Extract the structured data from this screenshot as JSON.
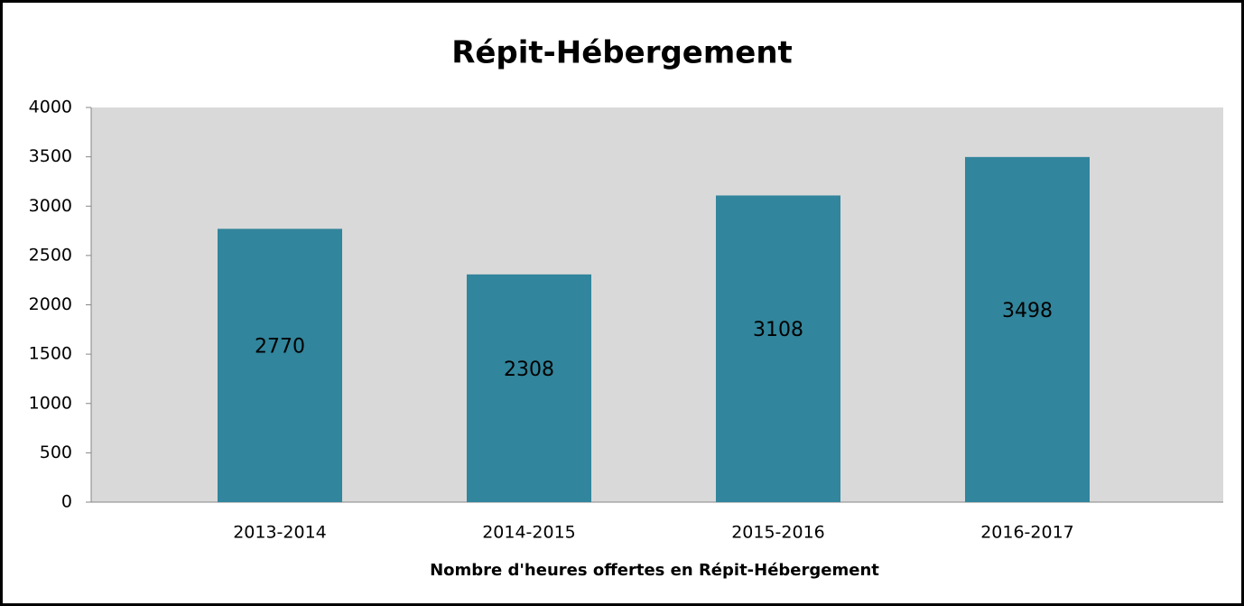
{
  "chart_data": {
    "type": "bar",
    "title": "Répit-Hébergement",
    "x_label": "Nombre d'heures offertes en Répit-Hébergement",
    "categories": [
      "2013-2014",
      "2014-2015",
      "2015-2016",
      "2016-2017"
    ],
    "values": [
      2770,
      2308,
      3108,
      3498
    ],
    "color": "#31859c",
    "ylim": [
      0,
      4000
    ],
    "yticks": [
      0,
      500,
      1000,
      1500,
      2000,
      2500,
      3000,
      3500,
      4000
    ],
    "grid": false
  }
}
